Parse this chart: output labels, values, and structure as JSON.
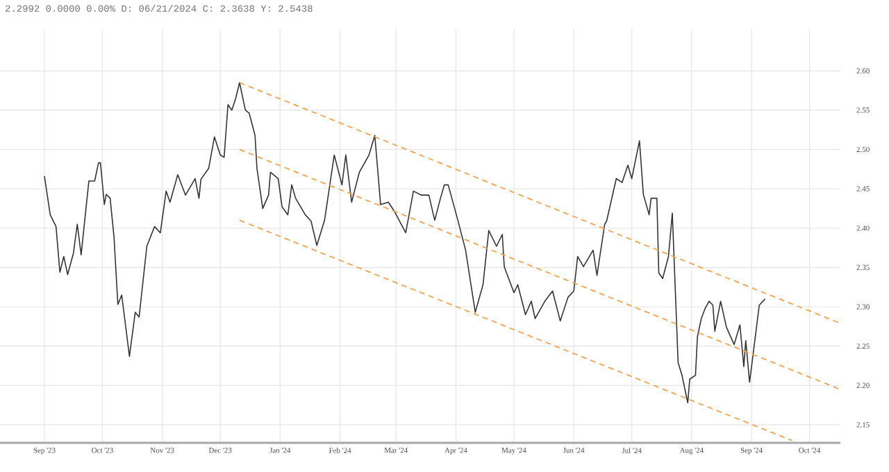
{
  "chart_data": {
    "type": "line",
    "title": "2.2992 0.0000 0.00% D: 06/21/2024 C: 2.3638 Y: 2.5438",
    "xlim": [
      "2023-08-09",
      "2024-10-17"
    ],
    "ylim": [
      2.127,
      2.653
    ],
    "xticks": [
      {
        "value": "2023-09-01",
        "label": "Sep '23"
      },
      {
        "value": "2023-10-01",
        "label": "Oct '23"
      },
      {
        "value": "2023-11-01",
        "label": "Nov '23"
      },
      {
        "value": "2023-12-01",
        "label": "Dec '23"
      },
      {
        "value": "2024-01-01",
        "label": "Jan '24"
      },
      {
        "value": "2024-02-01",
        "label": "Feb '24"
      },
      {
        "value": "2024-03-01",
        "label": "Mar '24"
      },
      {
        "value": "2024-04-01",
        "label": "Apr '24"
      },
      {
        "value": "2024-05-01",
        "label": "May '24"
      },
      {
        "value": "2024-06-01",
        "label": "Jun '24"
      },
      {
        "value": "2024-07-01",
        "label": "Jul '24"
      },
      {
        "value": "2024-08-01",
        "label": "Aug '24"
      },
      {
        "value": "2024-09-01",
        "label": "Sep '24"
      },
      {
        "value": "2024-10-01",
        "label": "Oct '24"
      }
    ],
    "yticks": [
      2.15,
      {
        "value": 2.2,
        "label": "2.20"
      },
      2.25,
      {
        "value": 2.3,
        "label": "2.30"
      },
      2.35,
      {
        "value": 2.4,
        "label": "2.40"
      },
      2.45,
      {
        "value": 2.5,
        "label": "2.50"
      },
      2.55,
      {
        "value": 2.6,
        "label": "2.60"
      }
    ],
    "grid": true,
    "marker": "none",
    "series": [
      {
        "color": "#333333",
        "line_style": "solid",
        "x": [
          "2023-09-01",
          "2023-09-04",
          "2023-09-07",
          "2023-09-09",
          "2023-09-11",
          "2023-09-13",
          "2023-09-16",
          "2023-09-18",
          "2023-09-20",
          "2023-09-24",
          "2023-09-27",
          "2023-09-29",
          "2023-09-30",
          "2023-10-02",
          "2023-10-03",
          "2023-10-05",
          "2023-10-07",
          "2023-10-09",
          "2023-10-11",
          "2023-10-15",
          "2023-10-18",
          "2023-10-20",
          "2023-10-24",
          "2023-10-28",
          "2023-10-31",
          "2023-11-03",
          "2023-11-05",
          "2023-11-09",
          "2023-11-13",
          "2023-11-18",
          "2023-11-20",
          "2023-11-21",
          "2023-11-25",
          "2023-11-28",
          "2023-12-01",
          "2023-12-03",
          "2023-12-05",
          "2023-12-07",
          "2023-12-09",
          "2023-12-11",
          "2023-12-14",
          "2023-12-16",
          "2023-12-19",
          "2023-12-20",
          "2023-12-23",
          "2023-12-26",
          "2023-12-27",
          "2023-12-31",
          "2024-01-02",
          "2024-01-05",
          "2024-01-07",
          "2024-01-09",
          "2024-01-14",
          "2024-01-17",
          "2024-01-20",
          "2024-01-24",
          "2024-01-29",
          "2024-02-02",
          "2024-02-04",
          "2024-02-07",
          "2024-02-11",
          "2024-02-16",
          "2024-02-19",
          "2024-02-22",
          "2024-02-26",
          "2024-02-29",
          "2024-03-06",
          "2024-03-10",
          "2024-03-14",
          "2024-03-18",
          "2024-03-21",
          "2024-03-24",
          "2024-03-26",
          "2024-03-28",
          "2024-04-02",
          "2024-04-06",
          "2024-04-11",
          "2024-04-15",
          "2024-04-18",
          "2024-04-22",
          "2024-04-25",
          "2024-04-26",
          "2024-05-01",
          "2024-05-03",
          "2024-05-07",
          "2024-05-10",
          "2024-05-12",
          "2024-05-17",
          "2024-05-21",
          "2024-05-25",
          "2024-05-29",
          "2024-06-01",
          "2024-06-03",
          "2024-06-06",
          "2024-06-11",
          "2024-06-13",
          "2024-06-17",
          "2024-06-18",
          "2024-06-23",
          "2024-06-26",
          "2024-06-29",
          "2024-07-01",
          "2024-07-05",
          "2024-07-07",
          "2024-07-10",
          "2024-07-11",
          "2024-07-14",
          "2024-07-15",
          "2024-07-17",
          "2024-07-20",
          "2024-07-22",
          "2024-07-25",
          "2024-07-27",
          "2024-07-30",
          "2024-07-31",
          "2024-08-03",
          "2024-08-04",
          "2024-08-06",
          "2024-08-08",
          "2024-08-10",
          "2024-08-12",
          "2024-08-13",
          "2024-08-16",
          "2024-08-19",
          "2024-08-23",
          "2024-08-26",
          "2024-08-28",
          "2024-08-29",
          "2024-08-31",
          "2024-09-05",
          "2024-09-08"
        ],
        "values": [
          2.466,
          2.417,
          2.402,
          2.344,
          2.364,
          2.341,
          2.368,
          2.405,
          2.366,
          2.46,
          2.46,
          2.483,
          2.483,
          2.43,
          2.443,
          2.438,
          2.389,
          2.303,
          2.315,
          2.237,
          2.293,
          2.287,
          2.377,
          2.402,
          2.394,
          2.447,
          2.433,
          2.468,
          2.442,
          2.463,
          2.438,
          2.462,
          2.476,
          2.516,
          2.493,
          2.49,
          2.557,
          2.55,
          2.565,
          2.585,
          2.55,
          2.546,
          2.518,
          2.476,
          2.425,
          2.442,
          2.471,
          2.463,
          2.427,
          2.417,
          2.455,
          2.438,
          2.417,
          2.409,
          2.378,
          2.41,
          2.493,
          2.455,
          2.493,
          2.433,
          2.471,
          2.493,
          2.518,
          2.43,
          2.433,
          2.422,
          2.394,
          2.447,
          2.442,
          2.442,
          2.41,
          2.438,
          2.455,
          2.455,
          2.41,
          2.372,
          2.293,
          2.328,
          2.397,
          2.377,
          2.392,
          2.351,
          2.318,
          2.328,
          2.29,
          2.307,
          2.285,
          2.307,
          2.32,
          2.282,
          2.312,
          2.32,
          2.364,
          2.351,
          2.372,
          2.34,
          2.405,
          2.409,
          2.463,
          2.458,
          2.48,
          2.463,
          2.511,
          2.443,
          2.417,
          2.438,
          2.438,
          2.343,
          2.336,
          2.364,
          2.419,
          2.229,
          2.213,
          2.178,
          2.208,
          2.213,
          2.262,
          2.285,
          2.298,
          2.307,
          2.302,
          2.269,
          2.307,
          2.274,
          2.252,
          2.277,
          2.224,
          2.257,
          2.204,
          2.302,
          2.31
        ]
      },
      {
        "type": "line",
        "color": "#f5a04a",
        "line_style": "dashed",
        "x": [
          "2023-12-11",
          "2024-10-17"
        ],
        "values": [
          2.585,
          2.279
        ]
      },
      {
        "type": "line",
        "color": "#f5a04a",
        "line_style": "dashed",
        "x": [
          "2023-12-11",
          "2024-10-17"
        ],
        "values": [
          2.5,
          2.195
        ]
      },
      {
        "type": "line",
        "color": "#f5a04a",
        "line_style": "dashed",
        "x": [
          "2023-12-11",
          "2024-09-22"
        ],
        "values": [
          2.41,
          2.13
        ]
      }
    ]
  }
}
